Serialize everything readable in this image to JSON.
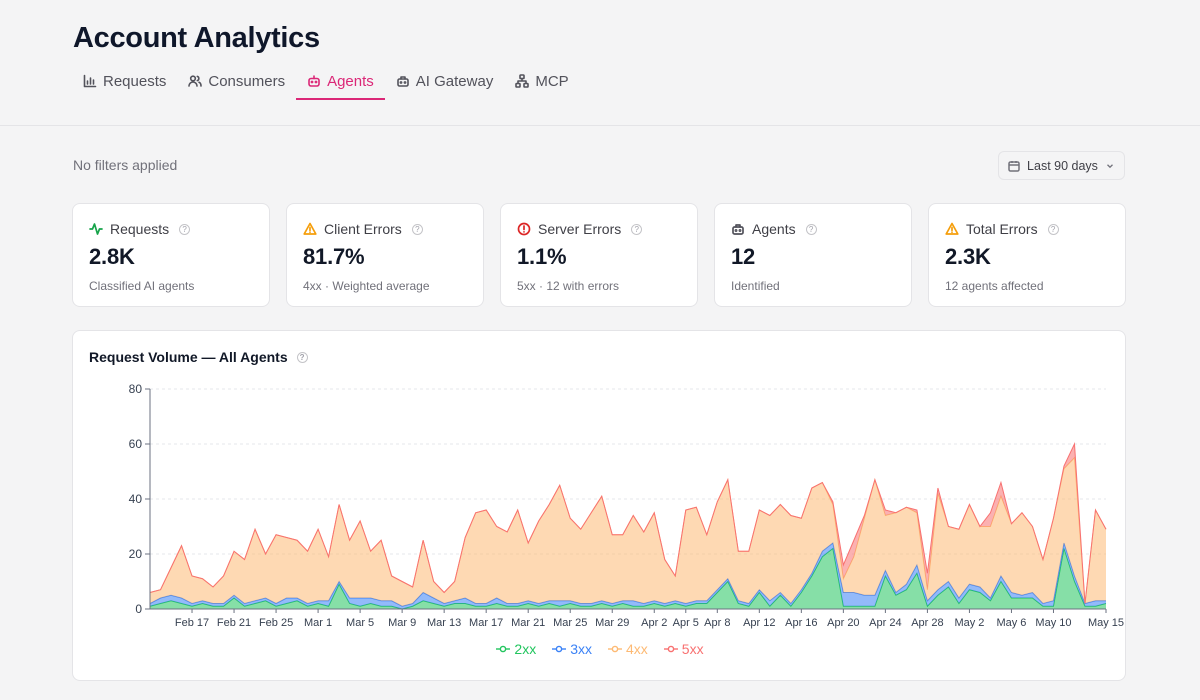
{
  "header": {
    "title": "Account Analytics",
    "tabs": [
      {
        "label": "Requests",
        "icon": "bar-chart-icon",
        "active": false
      },
      {
        "label": "Consumers",
        "icon": "users-icon",
        "active": false
      },
      {
        "label": "Agents",
        "icon": "bot-icon",
        "active": true
      },
      {
        "label": "AI Gateway",
        "icon": "gateway-icon",
        "active": false
      },
      {
        "label": "MCP",
        "icon": "network-icon",
        "active": false
      }
    ]
  },
  "toolbar": {
    "filters_text": "No filters applied",
    "date_range": "Last 90 days"
  },
  "cards": [
    {
      "title": "Requests",
      "value": "2.8K",
      "sub": "Classified AI agents",
      "icon": "activity-icon",
      "icon_color": "#16a34a"
    },
    {
      "title": "Client Errors",
      "value": "81.7%",
      "sub": "4xx · Weighted average",
      "icon": "warning-icon",
      "icon_color": "#f59e0b"
    },
    {
      "title": "Server Errors",
      "value": "1.1%",
      "sub": "5xx · 12 with errors",
      "icon": "alert-circle-icon",
      "icon_color": "#dc2626"
    },
    {
      "title": "Agents",
      "value": "12",
      "sub": "Identified",
      "icon": "bot-icon",
      "icon_color": "#52525b"
    },
    {
      "title": "Total Errors",
      "value": "2.3K",
      "sub": "12 agents affected",
      "icon": "warning-icon",
      "icon_color": "#f59e0b"
    }
  ],
  "chart": {
    "title": "Request Volume — All Agents"
  },
  "chart_data": {
    "type": "area",
    "stacked": true,
    "ylim": [
      0,
      80
    ],
    "yticks": [
      0,
      20,
      40,
      60,
      80
    ],
    "grid": true,
    "legend_position": "bottom",
    "start_date": "2026-02-13",
    "x_tick_labels": [
      "Feb 17",
      "Feb 21",
      "Feb 25",
      "Mar 1",
      "Mar 5",
      "Mar 9",
      "Mar 13",
      "Mar 17",
      "Mar 21",
      "Mar 25",
      "Mar 29",
      "Apr 2",
      "Apr 5",
      "Apr 8",
      "Apr 12",
      "Apr 16",
      "Apr 20",
      "Apr 24",
      "Apr 28",
      "May 2",
      "May 6",
      "May 10",
      "May 15"
    ],
    "x_tick_day_index": [
      4,
      8,
      12,
      16,
      20,
      24,
      28,
      32,
      36,
      40,
      44,
      48,
      51,
      54,
      58,
      62,
      66,
      70,
      74,
      78,
      82,
      86,
      91
    ],
    "series": [
      {
        "name": "2xx",
        "color": "#22c55e",
        "values": [
          1,
          2,
          3,
          2,
          1,
          2,
          1,
          1,
          4,
          1,
          2,
          3,
          1,
          2,
          3,
          1,
          2,
          1,
          9,
          2,
          1,
          2,
          1,
          1,
          0,
          1,
          3,
          2,
          1,
          2,
          2,
          1,
          1,
          2,
          1,
          1,
          2,
          1,
          2,
          1,
          2,
          1,
          1,
          2,
          1,
          2,
          1,
          1,
          2,
          1,
          2,
          1,
          2,
          2,
          6,
          10,
          2,
          1,
          6,
          1,
          5,
          1,
          6,
          12,
          19,
          22,
          1,
          1,
          1,
          1,
          12,
          5,
          7,
          13,
          1,
          5,
          8,
          2,
          7,
          6,
          3,
          10,
          4,
          4,
          4,
          1,
          1,
          22,
          10,
          1,
          1,
          2
        ]
      },
      {
        "name": "3xx",
        "color": "#3b82f6",
        "values": [
          1,
          2,
          2,
          2,
          1,
          1,
          1,
          1,
          1,
          1,
          1,
          1,
          1,
          2,
          1,
          1,
          1,
          2,
          1,
          2,
          3,
          2,
          2,
          2,
          1,
          1,
          3,
          2,
          1,
          1,
          2,
          1,
          1,
          2,
          1,
          1,
          1,
          1,
          1,
          2,
          1,
          1,
          1,
          1,
          1,
          1,
          2,
          1,
          1,
          1,
          1,
          1,
          1,
          1,
          1,
          1,
          1,
          1,
          1,
          2,
          1,
          1,
          1,
          1,
          2,
          2,
          5,
          5,
          4,
          4,
          2,
          1,
          2,
          3,
          2,
          2,
          2,
          2,
          2,
          2,
          1,
          2,
          2,
          1,
          2,
          1,
          2,
          2,
          2,
          1,
          2,
          1
        ]
      },
      {
        "name": "4xx",
        "color": "#fdba74",
        "values": [
          4,
          3,
          10,
          19,
          10,
          8,
          6,
          10,
          16,
          16,
          26,
          16,
          25,
          22,
          21,
          19,
          26,
          16,
          28,
          21,
          28,
          17,
          22,
          9,
          9,
          6,
          19,
          6,
          4,
          7,
          22,
          33,
          34,
          26,
          26,
          34,
          21,
          30,
          35,
          42,
          30,
          27,
          33,
          38,
          25,
          24,
          31,
          26,
          32,
          16,
          9,
          34,
          34,
          24,
          32,
          36,
          18,
          19,
          29,
          31,
          32,
          32,
          26,
          31,
          25,
          14,
          5,
          13,
          28,
          42,
          20,
          29,
          28,
          19,
          4,
          35,
          20,
          25,
          29,
          22,
          26,
          29,
          25,
          30,
          24,
          16,
          30,
          27,
          43,
          0,
          33,
          26
        ]
      },
      {
        "name": "5xx",
        "color": "#f87171",
        "values": [
          0,
          0,
          0,
          0,
          0,
          0,
          0,
          0,
          0,
          0,
          0,
          0,
          0,
          0,
          0,
          0,
          0,
          0,
          0,
          0,
          0,
          0,
          0,
          0,
          0,
          0,
          0,
          0,
          0,
          0,
          0,
          0,
          0,
          0,
          0,
          0,
          0,
          0,
          0,
          0,
          0,
          0,
          0,
          0,
          0,
          0,
          0,
          0,
          0,
          0,
          0,
          0,
          0,
          0,
          0,
          0,
          0,
          0,
          0,
          0,
          0,
          0,
          0,
          0,
          0,
          1,
          5,
          6,
          1,
          0,
          2,
          0,
          0,
          1,
          6,
          2,
          0,
          0,
          0,
          0,
          5,
          5,
          0,
          0,
          0,
          0,
          0,
          1,
          5,
          0,
          0,
          0
        ]
      }
    ]
  }
}
